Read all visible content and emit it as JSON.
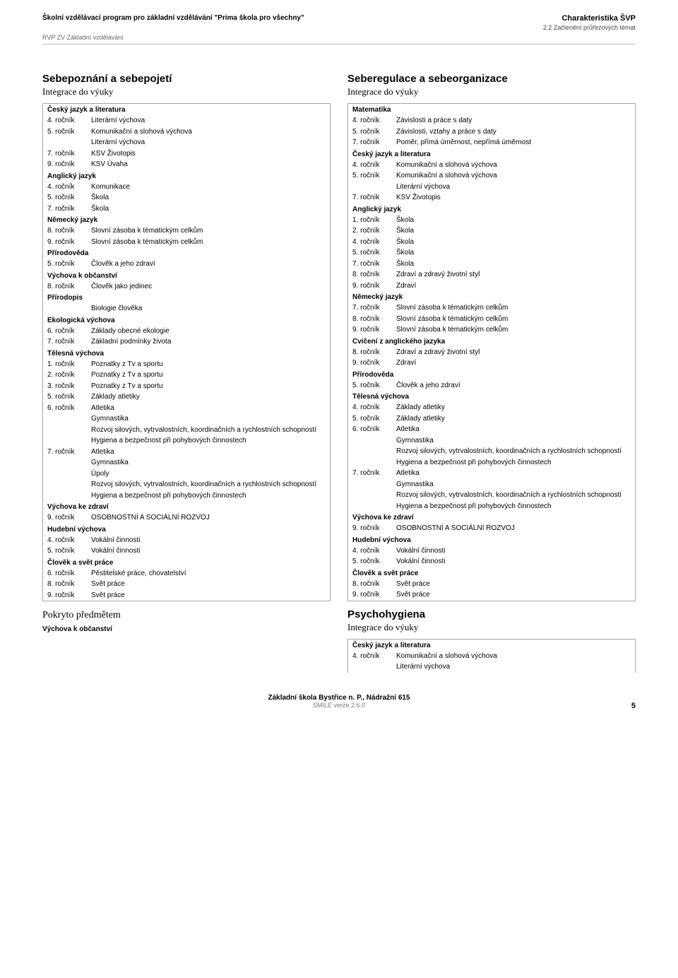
{
  "header": {
    "left": "Školní vzdělávací program pro základní vzdělávání \"Prima škola pro všechny\"",
    "sub": "RVP ZV Základní vzdělávání",
    "rightTitle": "Charakteristika ŠVP",
    "rightSub": "2.2 Začlenění průřezových témat"
  },
  "left": {
    "s1": {
      "title": "Sebepoznání a sebepojetí",
      "sub": "Integrace do výuky"
    },
    "b_cjl": {
      "head": "Český jazyk a literatura",
      "rows": [
        [
          "4. ročník",
          "Literární výchova"
        ],
        [
          "5. ročník",
          "Komunikační a slohová výchova"
        ],
        [
          "",
          "Literární výchova"
        ],
        [
          "7. ročník",
          "KSV Životopis"
        ],
        [
          "9. ročník",
          "KSV Úvaha"
        ]
      ]
    },
    "b_aj": {
      "head": "Anglický jazyk",
      "rows": [
        [
          "4. ročník",
          "Komunikace"
        ],
        [
          "5. ročník",
          "Škola"
        ],
        [
          "7. ročník",
          "Škola"
        ]
      ]
    },
    "b_nj": {
      "head": "Německý jazyk",
      "rows": [
        [
          "8. ročník",
          "Slovní zásoba k tématickým celkům"
        ],
        [
          "9. ročník",
          "Slovní zásoba k tématickým celkům"
        ]
      ]
    },
    "b_prir": {
      "head": "Přírodověda",
      "rows": [
        [
          "5. ročník",
          "Člověk a jeho zdraví"
        ]
      ]
    },
    "b_vo": {
      "head": "Výchova k občanství",
      "rows": [
        [
          "8. ročník",
          "Člověk jako jedinec"
        ]
      ]
    },
    "b_prirodopis": {
      "head": "Přírodopis",
      "rows": [
        [
          "",
          "Biologie člověka"
        ]
      ]
    },
    "b_eko": {
      "head": "Ekologická výchova",
      "rows": [
        [
          "6. ročník",
          "Základy obecné ekologie"
        ],
        [
          "7. ročník",
          "Základní podmínky života"
        ]
      ]
    },
    "b_tv": {
      "head": "Tělesná výchova",
      "rows": [
        [
          "1. ročník",
          "Poznatky z Tv a sportu"
        ],
        [
          "2. ročník",
          "Poznatky z Tv a sportu"
        ],
        [
          "3. ročník",
          "Poznatky z Tv a sportu"
        ],
        [
          "5. ročník",
          "Základy atletiky"
        ],
        [
          "6. ročník",
          "Atletika"
        ],
        [
          "",
          "Gymnastika"
        ],
        [
          "",
          "Rozvoj silových, vytrvalostních, koordinačních a rychlostních schopností"
        ],
        [
          "",
          "Hygiena a bezpečnost při pohybových činnostech"
        ],
        [
          "7. ročník",
          "Atletika"
        ],
        [
          "",
          "Gymnastika"
        ],
        [
          "",
          "Úpoly"
        ],
        [
          "",
          "Rozvoj silových, vytrvalostních, koordinačních a rychlostních schopností"
        ],
        [
          "",
          "Hygiena a bezpečnost při pohybových činnostech"
        ]
      ]
    },
    "b_vz": {
      "head": "Výchova ke zdraví",
      "rows": [
        [
          "9. ročník",
          "OSOBNOSTNÍ A SOCIÁLNÍ ROZVOJ"
        ]
      ]
    },
    "b_hv": {
      "head": "Hudební výchova",
      "rows": [
        [
          "4. ročník",
          "Vokální činnosti"
        ],
        [
          "5. ročník",
          "Vokální činnosti"
        ]
      ]
    },
    "b_csp": {
      "head": "Člověk a svět práce",
      "rows": [
        [
          "6. ročník",
          "Pěstitelské práce, chovatelství"
        ],
        [
          "8. ročník",
          "Svět práce"
        ],
        [
          "9. ročník",
          "Svět práce"
        ]
      ]
    },
    "covered": {
      "title": "Pokryto předmětem",
      "item": "Výchova k občanství"
    }
  },
  "right": {
    "s1": {
      "title": "Seberegulace a sebeorganizace",
      "sub": "Integrace do výuky"
    },
    "b_mat": {
      "head": "Matematika",
      "rows": [
        [
          "4. ročník",
          "Závislosti a práce s daty"
        ],
        [
          "5. ročník",
          "Závislosti, vztahy a práce s daty"
        ],
        [
          "7. ročník",
          "Poměr, přímá úměrnost, nepřímá úměrnost"
        ]
      ]
    },
    "b_cjl": {
      "head": "Český jazyk a literatura",
      "rows": [
        [
          "4. ročník",
          "Komunikační a slohová výchova"
        ],
        [
          "5. ročník",
          "Komunikační a slohová výchova"
        ],
        [
          "",
          "Literární výchova"
        ],
        [
          "7. ročník",
          "KSV Životopis"
        ]
      ]
    },
    "b_aj": {
      "head": "Anglický jazyk",
      "rows": [
        [
          "1. ročník",
          "Škola"
        ],
        [
          "2. ročník",
          "Škola"
        ],
        [
          "4. ročník",
          "Škola"
        ],
        [
          "5. ročník",
          "Škola"
        ],
        [
          "7. ročník",
          "Škola"
        ],
        [
          "8. ročník",
          "Zdraví a zdravý životní styl"
        ],
        [
          "9. ročník",
          "Zdraví"
        ]
      ]
    },
    "b_nj": {
      "head": "Německý jazyk",
      "rows": [
        [
          "7. ročník",
          "Slovní zásoba k tématickým celkům"
        ],
        [
          "8. ročník",
          "Slovní zásoba k tématickým celkům"
        ],
        [
          "9. ročník",
          "Slovní zásoba k tématickým celkům"
        ]
      ]
    },
    "b_cvaj": {
      "head": "Cvičení z anglického jazyka",
      "rows": [
        [
          "8. ročník",
          "Zdraví a zdravý životní styl"
        ],
        [
          "9. ročník",
          "Zdraví"
        ]
      ]
    },
    "b_prir": {
      "head": "Přírodověda",
      "rows": [
        [
          "5. ročník",
          "Člověk a jeho zdraví"
        ]
      ]
    },
    "b_tv": {
      "head": "Tělesná výchova",
      "rows": [
        [
          "4. ročník",
          "Základy atletiky"
        ],
        [
          "5. ročník",
          "Základy atletiky"
        ],
        [
          "6. ročník",
          "Atletika"
        ],
        [
          "",
          "Gymnastika"
        ],
        [
          "",
          "Rozvoj silových, vytrvalostních, koordinačních a rychlostních schopností"
        ],
        [
          "",
          "Hygiena a bezpečnost při pohybových činnostech"
        ],
        [
          "7. ročník",
          "Atletika"
        ],
        [
          "",
          "Gymnastika"
        ],
        [
          "",
          "Rozvoj silových, vytrvalostních, koordinačních a rychlostních schopností"
        ],
        [
          "",
          "Hygiena a bezpečnost při pohybových činnostech"
        ]
      ]
    },
    "b_vz": {
      "head": "Výchova ke zdraví",
      "rows": [
        [
          "9. ročník",
          "OSOBNOSTNÍ A SOCIÁLNÍ ROZVOJ"
        ]
      ]
    },
    "b_hv": {
      "head": "Hudební výchova",
      "rows": [
        [
          "4. ročník",
          "Vokální činnosti"
        ],
        [
          "5. ročník",
          "Vokální činnosti"
        ]
      ]
    },
    "b_csp": {
      "head": "Člověk a svět práce",
      "rows": [
        [
          "8. ročník",
          "Svět práce"
        ],
        [
          "9. ročník",
          "Svět práce"
        ]
      ]
    },
    "s2": {
      "title": "Psychohygiena",
      "sub": "Integrace do výuky"
    },
    "b2_cjl": {
      "head": "Český jazyk a literatura",
      "rows": [
        [
          "4. ročník",
          "Komunikační a slohová výchova"
        ],
        [
          "",
          "Literární výchova"
        ]
      ]
    }
  },
  "footer": {
    "line1": "Základní škola Bystřice n. P., Nádražní 615",
    "smile": "SMILE verze 2.6.0",
    "page": "5"
  }
}
